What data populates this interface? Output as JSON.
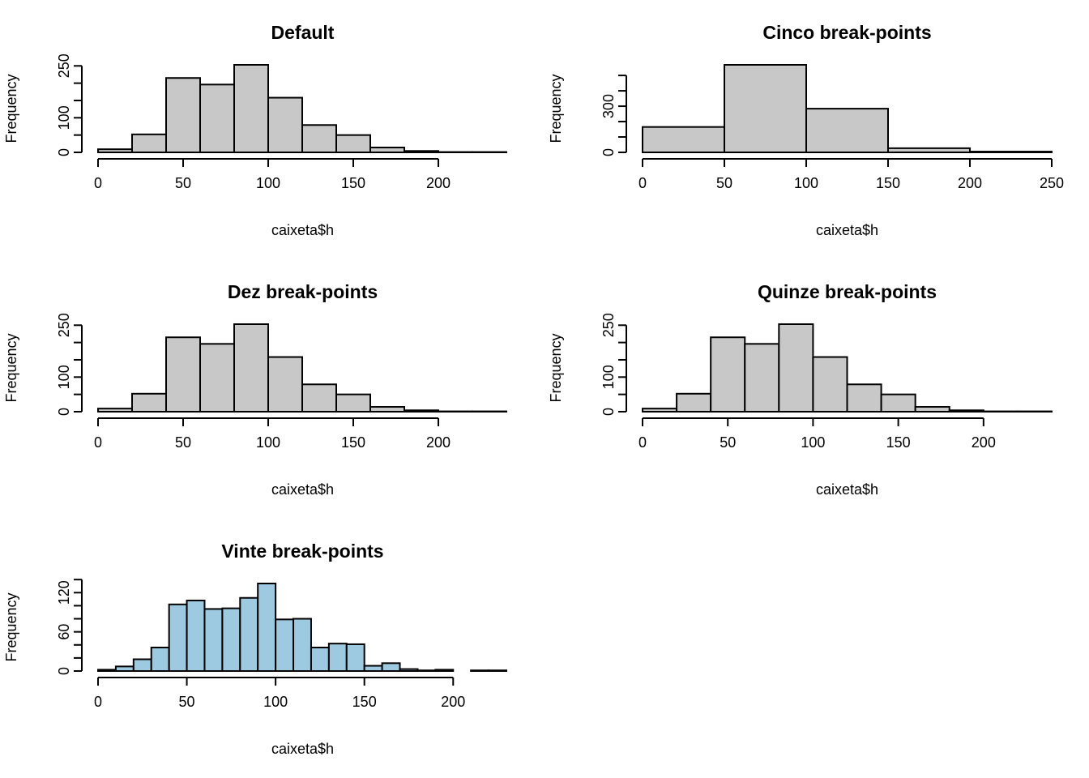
{
  "figure": {
    "bar_fill_default": "#c8c8c8",
    "bar_fill_highlight": "#9ecae1",
    "bar_stroke": "#000000",
    "background": "#ffffff"
  },
  "chart_data": [
    {
      "type": "bar",
      "title": "Default",
      "xlabel": "caixeta$h",
      "ylabel": "Frequency",
      "bins": [
        [
          0,
          20
        ],
        [
          20,
          40
        ],
        [
          40,
          60
        ],
        [
          60,
          80
        ],
        [
          80,
          100
        ],
        [
          100,
          120
        ],
        [
          120,
          140
        ],
        [
          140,
          160
        ],
        [
          160,
          180
        ],
        [
          180,
          200
        ],
        [
          200,
          220
        ],
        [
          220,
          240
        ]
      ],
      "values": [
        9,
        52,
        215,
        196,
        253,
        158,
        79,
        50,
        14,
        4,
        1,
        1
      ],
      "xticks": [
        0,
        50,
        100,
        150,
        200
      ],
      "xtick_labels": [
        "0",
        "50",
        "100",
        "150",
        "200"
      ],
      "yticks": [
        0,
        50,
        100,
        150,
        200,
        250
      ],
      "ytick_labels": [
        "0",
        "",
        "100",
        "",
        "",
        "250"
      ],
      "xlim": [
        0,
        240
      ],
      "ylim": [
        0,
        253
      ],
      "grid": false
    },
    {
      "type": "bar",
      "title": "Cinco break-points",
      "xlabel": "caixeta$h",
      "ylabel": "Frequency",
      "bins": [
        [
          0,
          50
        ],
        [
          50,
          100
        ],
        [
          100,
          150
        ],
        [
          150,
          200
        ],
        [
          200,
          250
        ]
      ],
      "values": [
        165,
        569,
        284,
        27,
        5
      ],
      "xticks": [
        0,
        50,
        100,
        150,
        200,
        250
      ],
      "xtick_labels": [
        "0",
        "50",
        "100",
        "150",
        "200",
        "250"
      ],
      "yticks": [
        0,
        100,
        200,
        300,
        400,
        500
      ],
      "ytick_labels": [
        "0",
        "",
        "",
        "300",
        "",
        ""
      ],
      "xlim": [
        0,
        250
      ],
      "ylim": [
        0,
        569
      ],
      "grid": false
    },
    {
      "type": "bar",
      "title": "Dez break-points",
      "xlabel": "caixeta$h",
      "ylabel": "Frequency",
      "bins": [
        [
          0,
          20
        ],
        [
          20,
          40
        ],
        [
          40,
          60
        ],
        [
          60,
          80
        ],
        [
          80,
          100
        ],
        [
          100,
          120
        ],
        [
          120,
          140
        ],
        [
          140,
          160
        ],
        [
          160,
          180
        ],
        [
          180,
          200
        ],
        [
          200,
          220
        ],
        [
          220,
          240
        ]
      ],
      "values": [
        9,
        52,
        215,
        196,
        253,
        158,
        79,
        50,
        14,
        4,
        1,
        1
      ],
      "xticks": [
        0,
        50,
        100,
        150,
        200
      ],
      "xtick_labels": [
        "0",
        "50",
        "100",
        "150",
        "200"
      ],
      "yticks": [
        0,
        50,
        100,
        150,
        200,
        250
      ],
      "ytick_labels": [
        "0",
        "",
        "100",
        "",
        "",
        "250"
      ],
      "xlim": [
        0,
        240
      ],
      "ylim": [
        0,
        253
      ],
      "grid": false
    },
    {
      "type": "bar",
      "title": "Quinze break-points",
      "xlabel": "caixeta$h",
      "ylabel": "Frequency",
      "bins": [
        [
          0,
          20
        ],
        [
          20,
          40
        ],
        [
          40,
          60
        ],
        [
          60,
          80
        ],
        [
          80,
          100
        ],
        [
          100,
          120
        ],
        [
          120,
          140
        ],
        [
          140,
          160
        ],
        [
          160,
          180
        ],
        [
          180,
          200
        ],
        [
          200,
          220
        ],
        [
          220,
          240
        ]
      ],
      "values": [
        9,
        52,
        215,
        196,
        253,
        158,
        79,
        50,
        14,
        4,
        1,
        1
      ],
      "xticks": [
        0,
        50,
        100,
        150,
        200
      ],
      "xtick_labels": [
        "0",
        "50",
        "100",
        "150",
        "200"
      ],
      "yticks": [
        0,
        50,
        100,
        150,
        200,
        250
      ],
      "ytick_labels": [
        "0",
        "",
        "100",
        "",
        "",
        "250"
      ],
      "xlim": [
        0,
        240
      ],
      "ylim": [
        0,
        253
      ],
      "grid": false
    },
    {
      "type": "bar",
      "title": "Vinte break-points",
      "xlabel": "caixeta$h",
      "ylabel": "Frequency",
      "bins": [
        [
          0,
          10
        ],
        [
          10,
          20
        ],
        [
          20,
          30
        ],
        [
          30,
          40
        ],
        [
          40,
          50
        ],
        [
          50,
          60
        ],
        [
          60,
          70
        ],
        [
          70,
          80
        ],
        [
          80,
          90
        ],
        [
          90,
          100
        ],
        [
          100,
          110
        ],
        [
          110,
          120
        ],
        [
          120,
          130
        ],
        [
          130,
          140
        ],
        [
          140,
          150
        ],
        [
          150,
          160
        ],
        [
          160,
          170
        ],
        [
          170,
          180
        ],
        [
          180,
          190
        ],
        [
          190,
          200
        ],
        [
          200,
          210
        ],
        [
          210,
          220
        ],
        [
          220,
          230
        ]
      ],
      "values": [
        2,
        7,
        18,
        36,
        102,
        108,
        95,
        96,
        112,
        134,
        79,
        80,
        36,
        42,
        41,
        8,
        12,
        3,
        1,
        2,
        0,
        1,
        1
      ],
      "xticks": [
        0,
        50,
        100,
        150,
        200
      ],
      "xtick_labels": [
        "0",
        "50",
        "100",
        "150",
        "200"
      ],
      "yticks": [
        0,
        20,
        40,
        60,
        80,
        100,
        120,
        140
      ],
      "ytick_labels": [
        "0",
        "",
        "",
        "60",
        "",
        "",
        "120",
        ""
      ],
      "xlim": [
        0,
        230
      ],
      "ylim": [
        0,
        134
      ],
      "grid": false
    }
  ]
}
